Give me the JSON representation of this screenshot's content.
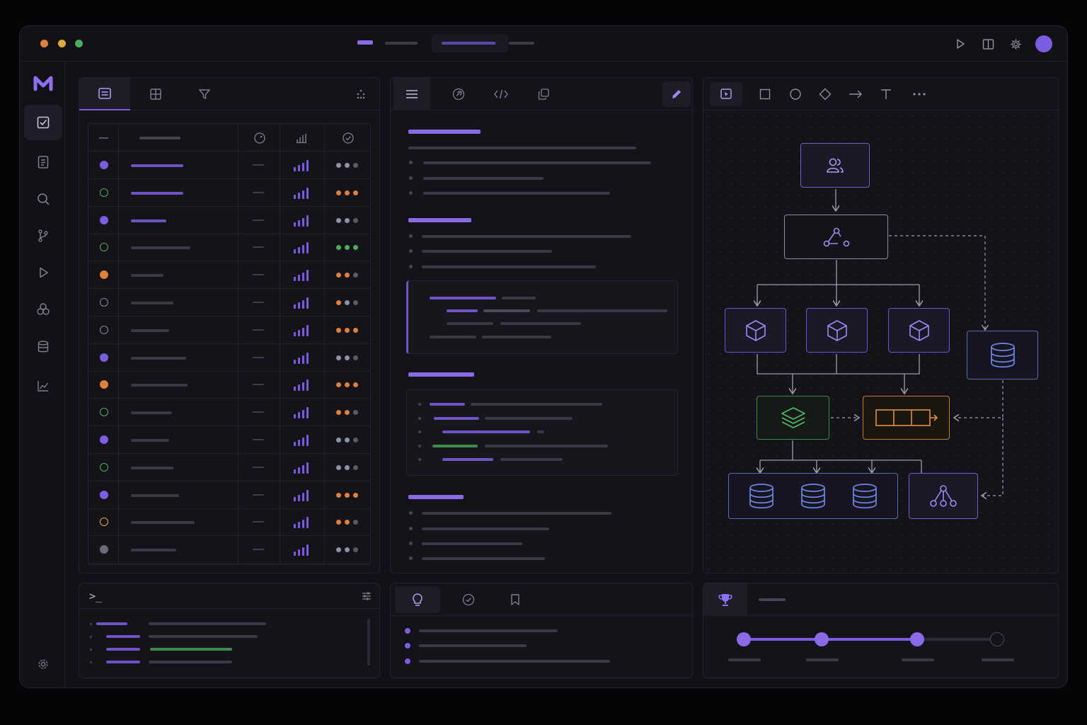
{
  "window": {
    "traffic_lights": [
      "#e0803a",
      "#e0a93a",
      "#4cae5c"
    ],
    "accent": "#7c5ce0"
  },
  "titlebar": {
    "icons": [
      "play-icon",
      "split-view-icon",
      "gear-icon",
      "avatar"
    ]
  },
  "sidebar": {
    "logo": "M",
    "items": [
      "tasks-icon",
      "document-icon",
      "search-icon",
      "git-branch-icon",
      "play-icon",
      "components-icon",
      "database-icon",
      "chart-icon"
    ],
    "footer_icon": "gear-icon"
  },
  "list_panel": {
    "tabs": [
      "list-icon",
      "table-icon",
      "filter-icon"
    ],
    "columns": [
      "status",
      "name",
      "tag-icon",
      "signal-icon",
      "check-icon"
    ],
    "rows": [
      {
        "status": "filled-purple",
        "levels": [
          "#8a93a8",
          "#8a93a8",
          "#5a5a66"
        ]
      },
      {
        "status": "ring-green",
        "levels": [
          "#e0803a",
          "#e0803a",
          "#e0803a"
        ]
      },
      {
        "status": "filled-purple",
        "levels": [
          "#8a93a8",
          "#8a93a8",
          "#5a5a66"
        ]
      },
      {
        "status": "ring-green",
        "levels": [
          "#4cae5c",
          "#4cae5c",
          "#4cae5c"
        ]
      },
      {
        "status": "filled-orange",
        "levels": [
          "#e0803a",
          "#e0803a",
          "#5a5a66"
        ]
      },
      {
        "status": "ring-gray",
        "levels": [
          "#e0803a",
          "#8a93a8",
          "#5a5a66"
        ]
      },
      {
        "status": "ring-gray",
        "levels": [
          "#e0803a",
          "#e0803a",
          "#e0803a"
        ]
      },
      {
        "status": "filled-purple",
        "levels": [
          "#8a93a8",
          "#8a93a8",
          "#5a5a66"
        ]
      },
      {
        "status": "filled-orange",
        "levels": [
          "#e0803a",
          "#e0803a",
          "#e0803a"
        ]
      },
      {
        "status": "ring-green",
        "levels": [
          "#e0803a",
          "#e0803a",
          "#5a5a66"
        ]
      },
      {
        "status": "filled-purple",
        "levels": [
          "#8a93a8",
          "#8a93a8",
          "#5a5a66"
        ]
      },
      {
        "status": "ring-green",
        "levels": [
          "#8a93a8",
          "#8a93a8",
          "#5a5a66"
        ]
      },
      {
        "status": "filled-purple",
        "levels": [
          "#e0803a",
          "#e0803a",
          "#e0803a"
        ]
      },
      {
        "status": "ring-orange",
        "levels": [
          "#e0803a",
          "#e0803a",
          "#5a5a66"
        ]
      },
      {
        "status": "filled-gray",
        "levels": [
          "#8a93a8",
          "#8a93a8",
          "#5a5a66"
        ]
      }
    ]
  },
  "doc_panel": {
    "tabs": [
      "menu-icon",
      "link-icon",
      "code-icon",
      "copy-icon"
    ],
    "edit_icon": "pencil-icon"
  },
  "canvas_panel": {
    "tools": [
      "select-icon",
      "rectangle-icon",
      "circle-icon",
      "diamond-icon",
      "arrow-icon",
      "text-icon",
      "more-icon"
    ],
    "nodes": [
      "users-icon",
      "graph-icon",
      "cube-icon",
      "cube-icon",
      "cube-icon",
      "database-icon",
      "layers-icon",
      "queue-icon",
      "database-icon",
      "database-icon",
      "database-icon",
      "network-icon"
    ]
  },
  "terminal_panel": {
    "prompt": ">_",
    "icon": "settings-sliders-icon"
  },
  "tips_panel": {
    "tabs": [
      "lightbulb-icon",
      "check-circle-icon",
      "bookmark-icon"
    ]
  },
  "progress_panel": {
    "icon": "trophy-icon",
    "steps_total": 4,
    "steps_done": 3
  }
}
